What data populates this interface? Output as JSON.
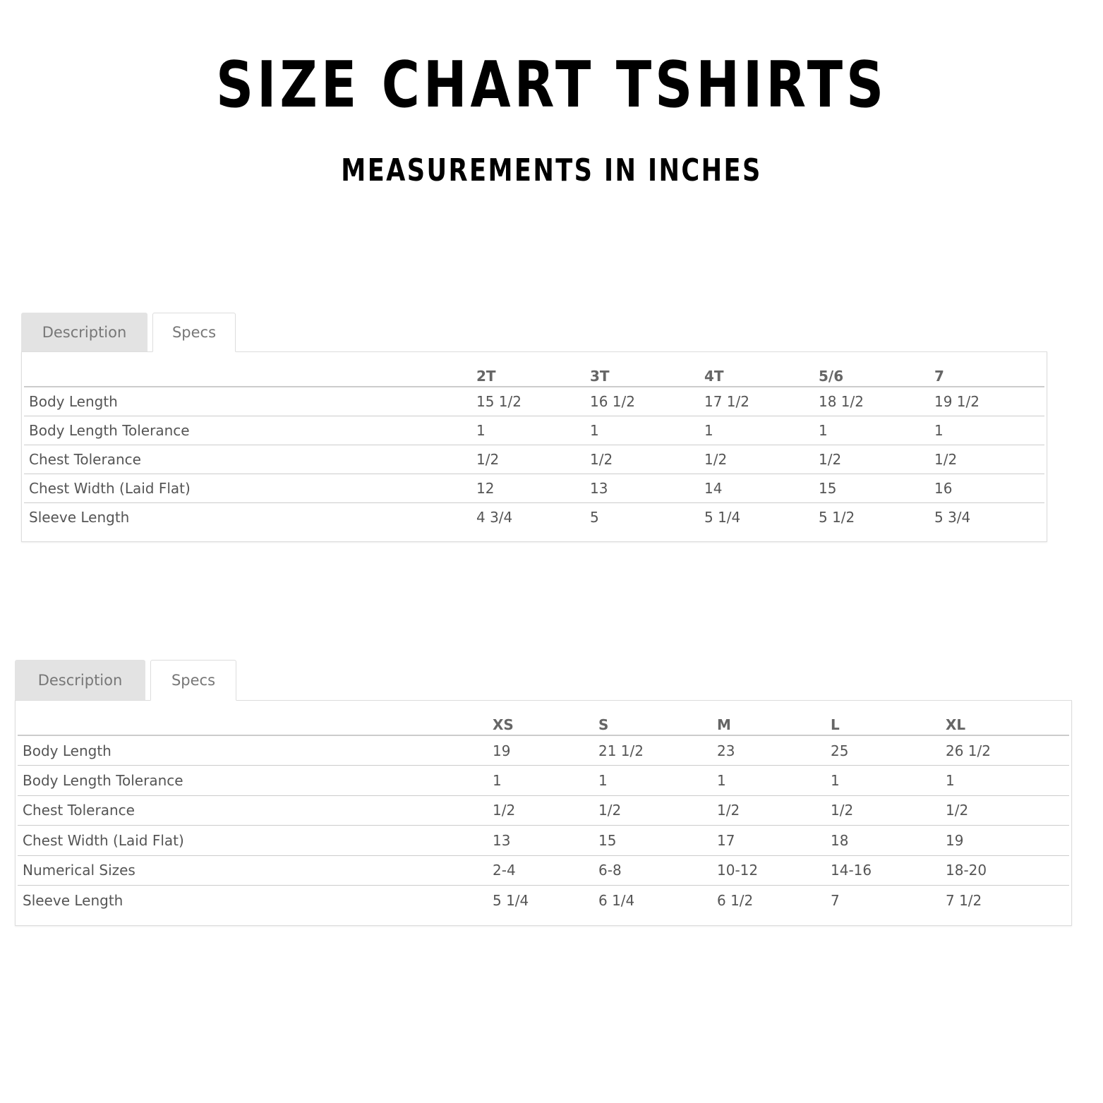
{
  "title": "SIZE CHART TSHIRTS",
  "subtitle": "MEASUREMENTS IN INCHES",
  "tables": [
    {
      "tabs": [
        {
          "label": "Description",
          "active": false
        },
        {
          "label": "Specs",
          "active": true
        }
      ],
      "columns": [
        "2T",
        "3T",
        "4T",
        "5/6",
        "7"
      ],
      "rows": [
        {
          "label": "Body Length",
          "values": [
            "15 1/2",
            "16 1/2",
            "17 1/2",
            "18 1/2",
            "19 1/2"
          ]
        },
        {
          "label": "Body Length Tolerance",
          "values": [
            "1",
            "1",
            "1",
            "1",
            "1"
          ]
        },
        {
          "label": "Chest Tolerance",
          "values": [
            "1/2",
            "1/2",
            "1/2",
            "1/2",
            "1/2"
          ]
        },
        {
          "label": "Chest Width (Laid Flat)",
          "values": [
            "12",
            "13",
            "14",
            "15",
            "16"
          ]
        },
        {
          "label": "Sleeve Length",
          "values": [
            "4 3/4",
            "5",
            "5 1/4",
            "5 1/2",
            "5 3/4"
          ]
        }
      ]
    },
    {
      "tabs": [
        {
          "label": "Description",
          "active": false
        },
        {
          "label": "Specs",
          "active": true
        }
      ],
      "columns": [
        "XS",
        "S",
        "M",
        "L",
        "XL"
      ],
      "rows": [
        {
          "label": "Body Length",
          "values": [
            "19",
            "21 1/2",
            "23",
            "25",
            "26 1/2"
          ]
        },
        {
          "label": "Body Length Tolerance",
          "values": [
            "1",
            "1",
            "1",
            "1",
            "1"
          ]
        },
        {
          "label": "Chest Tolerance",
          "values": [
            "1/2",
            "1/2",
            "1/2",
            "1/2",
            "1/2"
          ]
        },
        {
          "label": "Chest Width (Laid Flat)",
          "values": [
            "13",
            "15",
            "17",
            "18",
            "19"
          ]
        },
        {
          "label": "Numerical Sizes",
          "values": [
            "2-4",
            "6-8",
            "10-12",
            "14-16",
            "18-20"
          ]
        },
        {
          "label": "Sleeve Length",
          "values": [
            "5 1/4",
            "6 1/4",
            "6 1/2",
            "7",
            "7 1/2"
          ]
        }
      ]
    }
  ]
}
